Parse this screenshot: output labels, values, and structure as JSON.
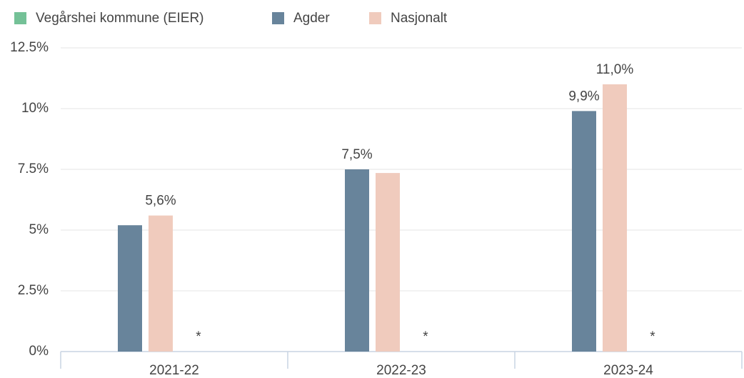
{
  "chart_data": {
    "type": "bar",
    "categories": [
      "2021-22",
      "2022-23",
      "2023-24"
    ],
    "series": [
      {
        "name": "Vegårshei kommune (EIER)",
        "color": "#74c197",
        "values": [
          null,
          null,
          null
        ],
        "value_labels": [
          "*",
          "*",
          "*"
        ]
      },
      {
        "name": "Agder",
        "color": "#68849b",
        "values": [
          5.2,
          7.5,
          9.9
        ],
        "value_labels": [
          null,
          "7,5%",
          "9,9%"
        ]
      },
      {
        "name": "Nasjonalt",
        "color": "#f0cbbd",
        "values": [
          5.6,
          7.35,
          11.0
        ],
        "value_labels": [
          "5,6%",
          null,
          "11,0%"
        ]
      }
    ],
    "ylim": [
      0,
      12.5
    ],
    "yticks": [
      {
        "value": 0,
        "label": "0%"
      },
      {
        "value": 2.5,
        "label": "2.5%"
      },
      {
        "value": 5,
        "label": "5%"
      },
      {
        "value": 7.5,
        "label": "7.5%"
      },
      {
        "value": 10,
        "label": "10%"
      },
      {
        "value": 12.5,
        "label": "12.5%"
      }
    ],
    "grid": true,
    "legend": "top"
  }
}
